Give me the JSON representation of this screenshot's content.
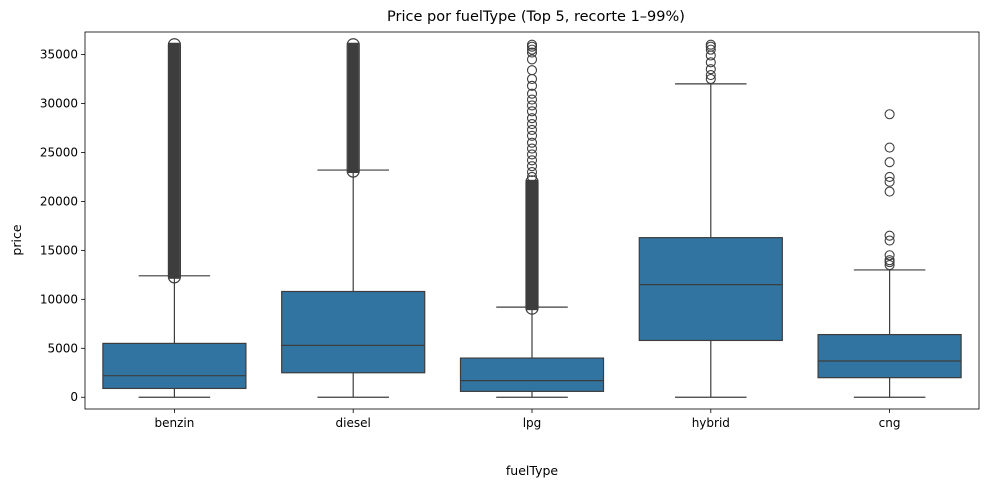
{
  "chart_data": {
    "type": "boxplot",
    "title": "Price por fuelType (Top 5, recorte 1–99%)",
    "xlabel": "fuelType",
    "ylabel": "price",
    "ylim": [
      -1200,
      37300
    ],
    "yticks": [
      0,
      5000,
      10000,
      15000,
      20000,
      25000,
      30000,
      35000
    ],
    "ytick_labels": [
      "0",
      "5000",
      "10000",
      "15000",
      "20000",
      "25000",
      "30000",
      "35000"
    ],
    "grid": false,
    "legend": "none",
    "box_color": "#3274a1",
    "line_color": "#3d3d3d",
    "categories": [
      "benzin",
      "diesel",
      "lpg",
      "hybrid",
      "cng"
    ],
    "boxes": [
      {
        "name": "benzin",
        "whislo": 0,
        "q1": 900,
        "median": 2200,
        "q3": 5500,
        "whishi": 12400,
        "fliers": {
          "dense_from": 12300,
          "dense_to": 36000,
          "points": []
        }
      },
      {
        "name": "diesel",
        "whislo": 0,
        "q1": 2500,
        "median": 5300,
        "q3": 10800,
        "whishi": 23200,
        "fliers": {
          "dense_from": 23100,
          "dense_to": 36000,
          "points": []
        }
      },
      {
        "name": "lpg",
        "whislo": 0,
        "q1": 600,
        "median": 1700,
        "q3": 4000,
        "whishi": 9200,
        "fliers": {
          "dense_from": 9100,
          "dense_to": 22000,
          "points": [
            22500,
            23000,
            23600,
            24200,
            24800,
            25400,
            26000,
            26700,
            27300,
            27900,
            28500,
            29200,
            29800,
            30400,
            31000,
            31800,
            32500,
            33400,
            34500,
            35200,
            35500,
            35800,
            36000
          ]
        }
      },
      {
        "name": "hybrid",
        "whislo": 0,
        "q1": 5800,
        "median": 11500,
        "q3": 16300,
        "whishi": 32000,
        "fliers": {
          "points": [
            32500,
            32900,
            33500,
            34200,
            34900,
            35500,
            35800,
            36000
          ]
        }
      },
      {
        "name": "cng",
        "whislo": 0,
        "q1": 2000,
        "median": 3700,
        "q3": 6400,
        "whishi": 13000,
        "fliers": {
          "points": [
            13500,
            13800,
            14000,
            14500,
            16000,
            16500,
            21000,
            22000,
            22500,
            24000,
            25500,
            28900
          ]
        }
      }
    ]
  }
}
